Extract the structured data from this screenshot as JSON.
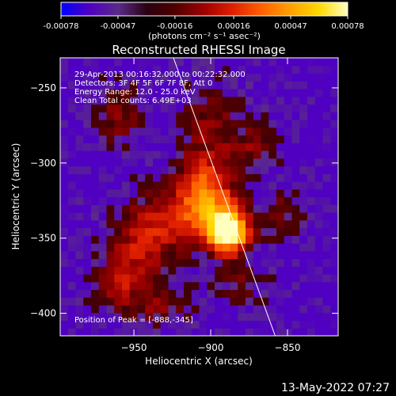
{
  "chart_data": {
    "type": "heatmap",
    "title": "Reconstructed RHESSI Image",
    "xlabel": "Heliocentric X (arcsec)",
    "ylabel": "Heliocentric Y (arcsec)",
    "xlim": [
      -998,
      -817
    ],
    "ylim": [
      -415,
      -230
    ],
    "x_ticks": [
      -950,
      -900,
      -850
    ],
    "y_ticks": [
      -250,
      -300,
      -350,
      -400
    ],
    "colorbar": {
      "range": [
        -0.00078,
        0.00078
      ],
      "tick_values": [
        -0.00078,
        -0.00047,
        -0.00016,
        0.00016,
        0.00047,
        0.00078
      ],
      "tick_labels": [
        "-0.00078",
        "-0.00047",
        "-0.00016",
        "0.00016",
        "0.00047",
        "0.00078"
      ],
      "unit_label": "(photons cm⁻² s⁻¹ asec⁻²)"
    },
    "annotations": [
      "29-Apr-2013 00:16:32.000 to 00:22:32.000",
      "Detectors: 3F 4F 5F 6F 7F 8F, Att 0",
      "Energy Range: 12.0 - 25.0 keV",
      "Clean     Total counts: 6.49E+03"
    ],
    "peak": {
      "label": "Position of Peak = [-888,-345]",
      "x": -888,
      "y": -345
    },
    "limb_line": [
      [
        -925,
        -228
      ],
      [
        -858,
        -415
      ]
    ],
    "sources": [
      {
        "x": -888,
        "y": -345,
        "sx": 9,
        "sy": 10,
        "amp": 1.0
      },
      {
        "x": -903,
        "y": -322,
        "sx": 13,
        "sy": 18,
        "amp": 0.55
      },
      {
        "x": -928,
        "y": -338,
        "sx": 18,
        "sy": 14,
        "amp": 0.3
      },
      {
        "x": -948,
        "y": -360,
        "sx": 14,
        "sy": 16,
        "amp": 0.28
      },
      {
        "x": -962,
        "y": -382,
        "sx": 10,
        "sy": 10,
        "amp": 0.22
      },
      {
        "x": -958,
        "y": -268,
        "sx": 12,
        "sy": 14,
        "amp": 0.22
      },
      {
        "x": -900,
        "y": -275,
        "sx": 14,
        "sy": 20,
        "amp": 0.2
      },
      {
        "x": -870,
        "y": -290,
        "sx": 10,
        "sy": 12,
        "amp": 0.2
      },
      {
        "x": -855,
        "y": -335,
        "sx": 10,
        "sy": 12,
        "amp": 0.18
      },
      {
        "x": -935,
        "y": -395,
        "sx": 16,
        "sy": 10,
        "amp": 0.2
      },
      {
        "x": -880,
        "y": -380,
        "sx": 12,
        "sy": 10,
        "amp": 0.15
      }
    ],
    "colormap": [
      "#0000ff",
      "#5000c0",
      "#5a2a8a",
      "#2a0010",
      "#500000",
      "#a00000",
      "#e02000",
      "#ff6000",
      "#ffa000",
      "#ffd800",
      "#ffffc0"
    ]
  },
  "footer": {
    "date": "13-May-2022 07:27"
  }
}
